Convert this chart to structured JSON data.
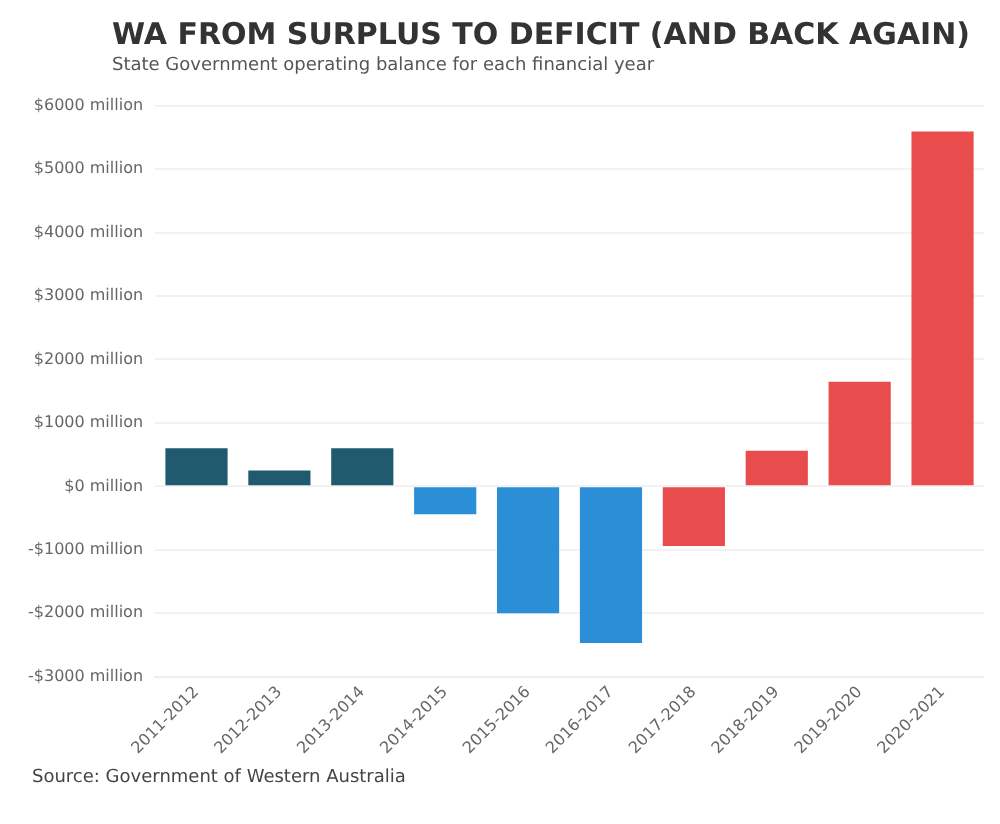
{
  "chart_data": {
    "type": "bar",
    "title": "WA FROM SURPLUS TO DEFICIT (AND BACK AGAIN)",
    "subtitle": "State Government operating balance for each financial year",
    "categories": [
      "2011-2012",
      "2012-2013",
      "2013-2014",
      "2014-2015",
      "2015-2016",
      "2016-2017",
      "2017-2018",
      "2018-2019",
      "2019-2020",
      "2020-2021"
    ],
    "values": [
      600,
      250,
      600,
      -440,
      -2000,
      -2470,
      -940,
      560,
      1650,
      5590
    ],
    "colors": [
      "#205a6e",
      "#205a6e",
      "#205a6e",
      "#2a8fd6",
      "#2a8fd6",
      "#2a8fd6",
      "#e84c4c",
      "#e84c4c",
      "#e84c4c",
      "#e84c4c"
    ],
    "ylim": [
      -3000,
      6000
    ],
    "yticks": [
      {
        "value": -3000,
        "label": "-$3000 million"
      },
      {
        "value": -2000,
        "label": "-$2000 million"
      },
      {
        "value": -1000,
        "label": "-$1000 million"
      },
      {
        "value": 0,
        "label": "$0 million"
      },
      {
        "value": 1000,
        "label": "$1000 million"
      },
      {
        "value": 2000,
        "label": "$2000 million"
      },
      {
        "value": 3000,
        "label": "$3000 million"
      },
      {
        "value": 4000,
        "label": "$4000 million"
      },
      {
        "value": 5000,
        "label": "$5000 million"
      },
      {
        "value": 6000,
        "label": "$6000 million"
      }
    ],
    "grid": "y",
    "legend": false,
    "annotations": [
      "Source: Government of Western Australia"
    ]
  }
}
